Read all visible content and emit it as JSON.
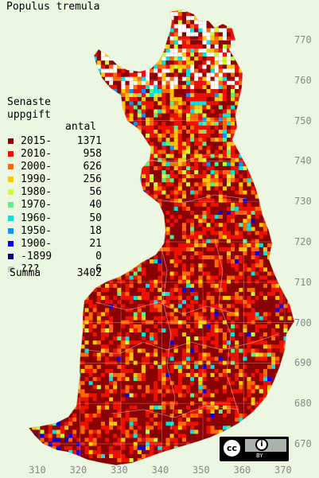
{
  "title": "Populus tremula",
  "legend": {
    "heading_line1": "Senaste",
    "heading_line2": "uppgift",
    "count_heading": "antal",
    "items": [
      {
        "label": "2015-",
        "count": "1371",
        "color": "#8b0000"
      },
      {
        "label": "2010-",
        "count": "958",
        "color": "#ee1100"
      },
      {
        "label": "2000-",
        "count": "626",
        "color": "#ff6a00"
      },
      {
        "label": "1990-",
        "count": "256",
        "color": "#ffc800"
      },
      {
        "label": "1980-",
        "count": "56",
        "color": "#c8ff3c"
      },
      {
        "label": "1970-",
        "count": "40",
        "color": "#5af08c"
      },
      {
        "label": "1960-",
        "count": "50",
        "color": "#00e1e1"
      },
      {
        "label": "1950-",
        "count": "18",
        "color": "#0096ff"
      },
      {
        "label": "1900-",
        "count": "21",
        "color": "#0000e6"
      },
      {
        "label": "-1899",
        "count": "0",
        "color": "#000080"
      },
      {
        "label": "???",
        "count": "6",
        "color": "#c8c8c8"
      }
    ],
    "summa_label": "Summa",
    "summa_value": "3402"
  },
  "axes": {
    "y_ticks": [
      "770",
      "760",
      "750",
      "740",
      "730",
      "720",
      "710",
      "700",
      "690",
      "680",
      "670"
    ],
    "x_ticks": [
      "310",
      "320",
      "330",
      "340",
      "350",
      "360",
      "370"
    ]
  },
  "license": {
    "cc_symbol": "cc",
    "by_symbol": "i",
    "by_text": "BY"
  }
}
